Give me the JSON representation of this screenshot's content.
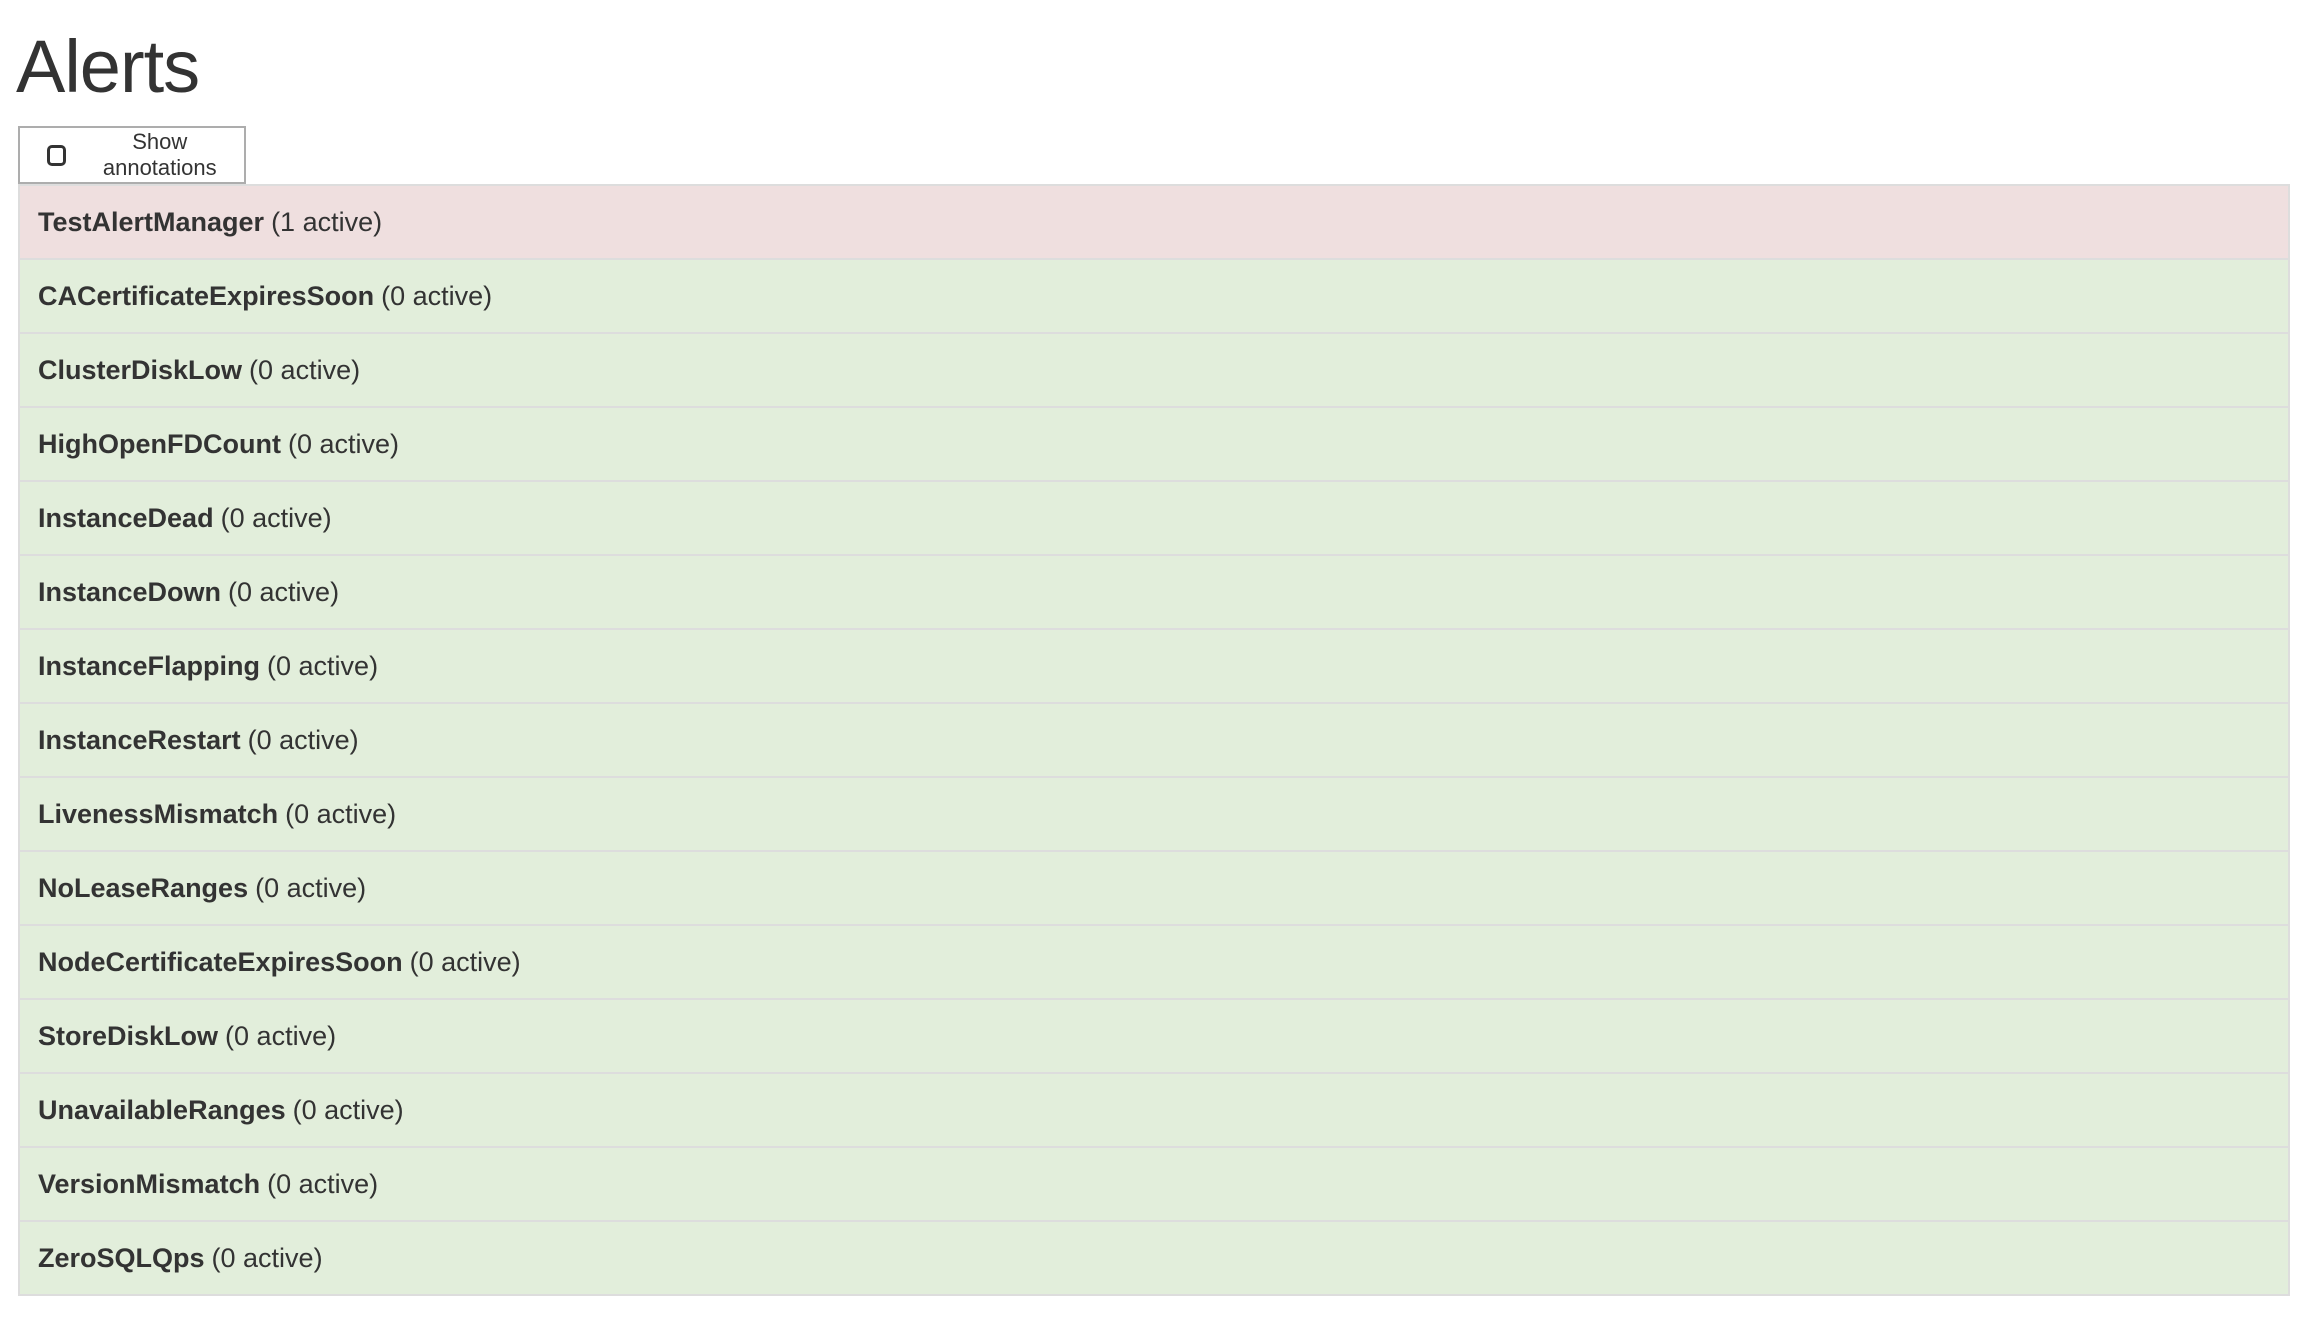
{
  "page": {
    "title": "Alerts"
  },
  "controls": {
    "show_annotations_label": "Show annotations",
    "show_annotations_checked": false
  },
  "colors": {
    "firing_bg": "#efdfdf",
    "inactive_bg": "#e2eedb",
    "border": "#dddddd"
  },
  "alerts": [
    {
      "name": "TestAlertManager",
      "count": "(1 active)",
      "state": "firing"
    },
    {
      "name": "CACertificateExpiresSoon",
      "count": "(0 active)",
      "state": "ok"
    },
    {
      "name": "ClusterDiskLow",
      "count": "(0 active)",
      "state": "ok"
    },
    {
      "name": "HighOpenFDCount",
      "count": "(0 active)",
      "state": "ok"
    },
    {
      "name": "InstanceDead",
      "count": "(0 active)",
      "state": "ok"
    },
    {
      "name": "InstanceDown",
      "count": "(0 active)",
      "state": "ok"
    },
    {
      "name": "InstanceFlapping",
      "count": "(0 active)",
      "state": "ok"
    },
    {
      "name": "InstanceRestart",
      "count": "(0 active)",
      "state": "ok"
    },
    {
      "name": "LivenessMismatch",
      "count": "(0 active)",
      "state": "ok"
    },
    {
      "name": "NoLeaseRanges",
      "count": "(0 active)",
      "state": "ok"
    },
    {
      "name": "NodeCertificateExpiresSoon",
      "count": "(0 active)",
      "state": "ok"
    },
    {
      "name": "StoreDiskLow",
      "count": "(0 active)",
      "state": "ok"
    },
    {
      "name": "UnavailableRanges",
      "count": "(0 active)",
      "state": "ok"
    },
    {
      "name": "VersionMismatch",
      "count": "(0 active)",
      "state": "ok"
    },
    {
      "name": "ZeroSQLQps",
      "count": "(0 active)",
      "state": "ok"
    }
  ]
}
